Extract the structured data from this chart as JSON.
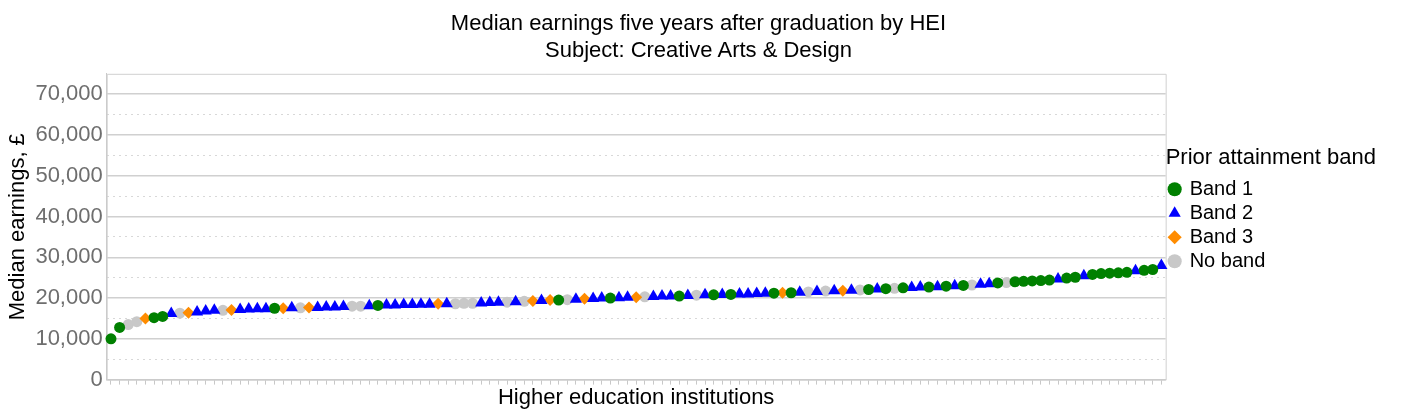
{
  "chart_data": {
    "type": "scatter",
    "title": "Median earnings five years after graduation by HEI",
    "subtitle": "Subject: Creative Arts & Design",
    "xlabel": "Higher education institutions",
    "ylabel": "Median earnings, £",
    "legend_title": "Prior attainment band",
    "legend": "right",
    "grid": "y",
    "tick_labels": "y",
    "ylim": [
      0,
      75000
    ],
    "yticks": [
      {
        "value": 0,
        "label": "0"
      },
      {
        "value": 5000,
        "label": null
      },
      {
        "value": 10000,
        "label": "10,000"
      },
      {
        "value": 15000,
        "label": null
      },
      {
        "value": 20000,
        "label": "20,000"
      },
      {
        "value": 25000,
        "label": null
      },
      {
        "value": 30000,
        "label": "30,000"
      },
      {
        "value": 35000,
        "label": null
      },
      {
        "value": 40000,
        "label": "40,000"
      },
      {
        "value": 45000,
        "label": null
      },
      {
        "value": 50000,
        "label": "50,000"
      },
      {
        "value": 55000,
        "label": null
      },
      {
        "value": 60000,
        "label": "60,000"
      },
      {
        "value": 65000,
        "label": null
      },
      {
        "value": 70000,
        "label": "70,000"
      }
    ],
    "categories": [
      null,
      null,
      null,
      null,
      null,
      null,
      null,
      null,
      null,
      null,
      null,
      null,
      null,
      null,
      null,
      null,
      null,
      null,
      null,
      null,
      null,
      null,
      null,
      null,
      null,
      null,
      null,
      null,
      null,
      null,
      null,
      null,
      null,
      null,
      null,
      null,
      null,
      null,
      null,
      null,
      null,
      null,
      null,
      null,
      null,
      null,
      null,
      null,
      null,
      null,
      null,
      null,
      null,
      null,
      null,
      null,
      null,
      null,
      null,
      null,
      null,
      null,
      null,
      null,
      null,
      null,
      null,
      null,
      null,
      null,
      null,
      null,
      null,
      null,
      null,
      null,
      null,
      null,
      null,
      null,
      null,
      null,
      null,
      null,
      null,
      null,
      null,
      null,
      null,
      null,
      null,
      null,
      null,
      null,
      null,
      null,
      null,
      null,
      null,
      null,
      null,
      null,
      null,
      null,
      null,
      null,
      null,
      null,
      null,
      null,
      null,
      null,
      null,
      null,
      null,
      null,
      null,
      null,
      null,
      null,
      null,
      null,
      null
    ],
    "series": [
      {
        "name": "Band 1",
        "color": "#008000",
        "marker": "circle",
        "values": [
          10000,
          12800,
          null,
          null,
          null,
          15200,
          15500,
          null,
          null,
          null,
          null,
          null,
          null,
          null,
          null,
          null,
          null,
          null,
          null,
          17500,
          null,
          null,
          null,
          null,
          null,
          null,
          null,
          null,
          null,
          null,
          null,
          18200,
          null,
          null,
          null,
          null,
          null,
          null,
          null,
          null,
          null,
          null,
          null,
          null,
          null,
          null,
          null,
          null,
          null,
          null,
          null,
          null,
          19500,
          null,
          null,
          null,
          null,
          null,
          20000,
          null,
          null,
          null,
          null,
          null,
          null,
          null,
          20500,
          null,
          null,
          null,
          20800,
          null,
          20900,
          null,
          null,
          null,
          null,
          21200,
          null,
          21300,
          null,
          null,
          null,
          null,
          null,
          null,
          null,
          null,
          22100,
          null,
          22300,
          null,
          22500,
          null,
          null,
          22700,
          null,
          22900,
          null,
          23100,
          null,
          null,
          null,
          23700,
          null,
          24000,
          24100,
          24200,
          24300,
          24400,
          null,
          24900,
          25100,
          null,
          25800,
          26000,
          26100,
          26200,
          26300,
          null,
          26800,
          27000,
          null
        ]
      },
      {
        "name": "Band 2",
        "color": "#0000ff",
        "marker": "triangle",
        "values": [
          null,
          null,
          null,
          null,
          null,
          null,
          null,
          16200,
          null,
          null,
          16600,
          16800,
          17000,
          null,
          null,
          17200,
          17300,
          17400,
          17400,
          null,
          null,
          17600,
          null,
          null,
          17700,
          17800,
          17800,
          17900,
          null,
          null,
          18100,
          null,
          18300,
          18300,
          18400,
          18400,
          18500,
          18500,
          null,
          18600,
          null,
          null,
          null,
          18800,
          18900,
          19000,
          null,
          19100,
          null,
          null,
          19400,
          null,
          null,
          null,
          19700,
          null,
          19900,
          20000,
          null,
          20100,
          20200,
          null,
          null,
          20400,
          20500,
          20500,
          null,
          20600,
          null,
          20800,
          null,
          20900,
          null,
          21000,
          21000,
          21100,
          21200,
          null,
          null,
          null,
          21400,
          null,
          21600,
          null,
          21800,
          null,
          21900,
          null,
          null,
          22200,
          null,
          null,
          null,
          22600,
          22700,
          null,
          22800,
          null,
          23000,
          null,
          null,
          23400,
          23500,
          null,
          null,
          null,
          null,
          null,
          null,
          null,
          24700,
          null,
          null,
          25500,
          null,
          null,
          null,
          null,
          null,
          26700,
          null,
          null,
          28000
        ]
      },
      {
        "name": "Band 3",
        "color": "#ff8c00",
        "marker": "diamond",
        "values": [
          null,
          null,
          null,
          null,
          15000,
          null,
          null,
          null,
          null,
          16400,
          null,
          null,
          null,
          null,
          17100,
          null,
          null,
          null,
          null,
          null,
          17500,
          null,
          null,
          17700,
          null,
          null,
          null,
          null,
          null,
          null,
          null,
          null,
          null,
          null,
          null,
          null,
          null,
          null,
          18600,
          null,
          null,
          null,
          null,
          null,
          null,
          null,
          null,
          null,
          null,
          19300,
          null,
          19500,
          null,
          null,
          null,
          19800,
          null,
          null,
          null,
          null,
          null,
          20200,
          null,
          null,
          null,
          null,
          null,
          null,
          null,
          null,
          null,
          null,
          null,
          null,
          null,
          null,
          null,
          null,
          21300,
          null,
          null,
          null,
          null,
          null,
          null,
          21800,
          null,
          null,
          null,
          null,
          null,
          null,
          null,
          null,
          null,
          null,
          null,
          null,
          null,
          null,
          null,
          null,
          null,
          null,
          null,
          null,
          null,
          null,
          null,
          null,
          null,
          null,
          null,
          null,
          null,
          null,
          null,
          null,
          null,
          null,
          null,
          null,
          null
        ]
      },
      {
        "name": "No band",
        "color": "#c8c8c8",
        "marker": "circle",
        "values": [
          null,
          null,
          13500,
          14200,
          null,
          null,
          null,
          null,
          16300,
          null,
          null,
          null,
          null,
          17000,
          null,
          null,
          null,
          null,
          null,
          null,
          null,
          null,
          17600,
          null,
          null,
          null,
          null,
          null,
          18000,
          18000,
          null,
          null,
          null,
          null,
          null,
          null,
          null,
          null,
          null,
          null,
          18600,
          18700,
          18700,
          null,
          null,
          null,
          19000,
          null,
          19200,
          null,
          null,
          null,
          null,
          19600,
          null,
          null,
          null,
          null,
          null,
          null,
          null,
          null,
          20300,
          null,
          null,
          null,
          null,
          null,
          20700,
          null,
          null,
          null,
          null,
          null,
          null,
          null,
          null,
          null,
          null,
          null,
          null,
          21500,
          null,
          21700,
          null,
          null,
          null,
          22000,
          null,
          null,
          null,
          22400,
          null,
          null,
          null,
          null,
          null,
          null,
          null,
          null,
          23200,
          null,
          null,
          null,
          23800,
          null,
          null,
          null,
          null,
          null,
          null,
          null,
          null,
          null,
          null,
          null,
          null,
          null,
          null,
          null,
          null,
          null,
          null
        ]
      }
    ]
  }
}
